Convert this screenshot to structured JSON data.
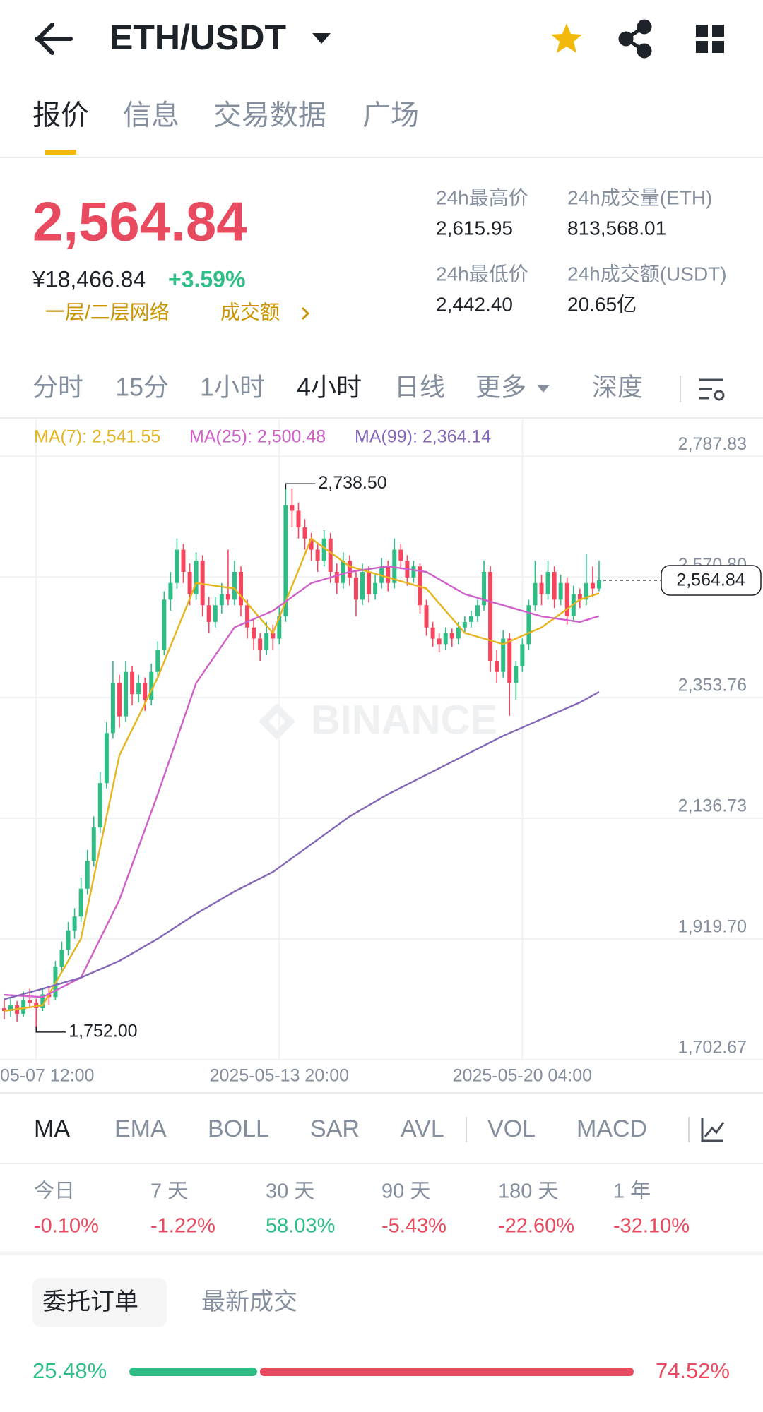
{
  "header": {
    "pair": "ETH/USDT"
  },
  "tabs": [
    "报价",
    "信息",
    "交易数据",
    "广场"
  ],
  "price": {
    "last": "2,564.84",
    "cny": "¥18,466.84",
    "change": "+3.59%",
    "links": [
      "一层/二层网络",
      "成交额"
    ]
  },
  "stats": [
    {
      "label": "24h最高价",
      "value": "2,615.95"
    },
    {
      "label": "24h成交量(ETH)",
      "value": "813,568.01"
    },
    {
      "label": "24h最低价",
      "value": "2,442.40"
    },
    {
      "label": "24h成交额(USDT)",
      "value": "20.65亿"
    }
  ],
  "intervals": [
    "分时",
    "15分",
    "1小时",
    "4小时",
    "日线",
    "更多",
    "深度"
  ],
  "chart_data": {
    "type": "candlestick",
    "up_color": "#2ebd85",
    "down_color": "#f6465d",
    "grid": true,
    "watermark": "BINANCE",
    "ohlc": [
      [
        1795,
        1810,
        1775,
        1790
      ],
      [
        1790,
        1815,
        1780,
        1800
      ],
      [
        1800,
        1808,
        1770,
        1785
      ],
      [
        1785,
        1825,
        1780,
        1810
      ],
      [
        1810,
        1830,
        1795,
        1805
      ],
      [
        1805,
        1812,
        1752,
        1795
      ],
      [
        1795,
        1830,
        1790,
        1820
      ],
      [
        1820,
        1835,
        1800,
        1815
      ],
      [
        1815,
        1880,
        1810,
        1870
      ],
      [
        1870,
        1915,
        1860,
        1900
      ],
      [
        1900,
        1950,
        1890,
        1935
      ],
      [
        1935,
        1975,
        1920,
        1960
      ],
      [
        1960,
        2030,
        1950,
        2010
      ],
      [
        2010,
        2080,
        2000,
        2060
      ],
      [
        2060,
        2140,
        2050,
        2120
      ],
      [
        2120,
        2220,
        2110,
        2200
      ],
      [
        2200,
        2310,
        2190,
        2290
      ],
      [
        2290,
        2420,
        2280,
        2380
      ],
      [
        2380,
        2395,
        2300,
        2320
      ],
      [
        2320,
        2420,
        2310,
        2400
      ],
      [
        2400,
        2410,
        2340,
        2360
      ],
      [
        2360,
        2395,
        2345,
        2380
      ],
      [
        2380,
        2390,
        2330,
        2350
      ],
      [
        2350,
        2415,
        2340,
        2400
      ],
      [
        2400,
        2455,
        2390,
        2440
      ],
      [
        2440,
        2545,
        2430,
        2530
      ],
      [
        2530,
        2580,
        2510,
        2560
      ],
      [
        2560,
        2640,
        2550,
        2620
      ],
      [
        2620,
        2630,
        2560,
        2580
      ],
      [
        2580,
        2595,
        2520,
        2540
      ],
      [
        2540,
        2615,
        2530,
        2600
      ],
      [
        2600,
        2610,
        2500,
        2520
      ],
      [
        2520,
        2535,
        2470,
        2490
      ],
      [
        2490,
        2535,
        2480,
        2520
      ],
      [
        2520,
        2560,
        2505,
        2540
      ],
      [
        2540,
        2620,
        2520,
        2530
      ],
      [
        2530,
        2600,
        2520,
        2580
      ],
      [
        2580,
        2590,
        2500,
        2520
      ],
      [
        2520,
        2530,
        2460,
        2480
      ],
      [
        2480,
        2495,
        2440,
        2460
      ],
      [
        2460,
        2470,
        2420,
        2440
      ],
      [
        2440,
        2490,
        2430,
        2470
      ],
      [
        2470,
        2485,
        2440,
        2460
      ],
      [
        2460,
        2520,
        2450,
        2500
      ],
      [
        2500,
        2738.5,
        2490,
        2700
      ],
      [
        2700,
        2730,
        2660,
        2690
      ],
      [
        2690,
        2705,
        2640,
        2660
      ],
      [
        2660,
        2675,
        2620,
        2640
      ],
      [
        2640,
        2650,
        2600,
        2620
      ],
      [
        2620,
        2630,
        2580,
        2600
      ],
      [
        2600,
        2655,
        2590,
        2640
      ],
      [
        2640,
        2650,
        2560,
        2580
      ],
      [
        2580,
        2595,
        2540,
        2560
      ],
      [
        2560,
        2615,
        2550,
        2600
      ],
      [
        2600,
        2610,
        2555,
        2570
      ],
      [
        2570,
        2580,
        2500,
        2530
      ],
      [
        2530,
        2595,
        2520,
        2580
      ],
      [
        2580,
        2590,
        2525,
        2540
      ],
      [
        2540,
        2575,
        2530,
        2560
      ],
      [
        2560,
        2605,
        2550,
        2590
      ],
      [
        2590,
        2600,
        2545,
        2560
      ],
      [
        2560,
        2640,
        2550,
        2620
      ],
      [
        2620,
        2630,
        2585,
        2600
      ],
      [
        2600,
        2610,
        2555,
        2570
      ],
      [
        2570,
        2600,
        2560,
        2590
      ],
      [
        2590,
        2595,
        2505,
        2520
      ],
      [
        2520,
        2530,
        2465,
        2480
      ],
      [
        2480,
        2490,
        2445,
        2460
      ],
      [
        2460,
        2470,
        2435,
        2450
      ],
      [
        2450,
        2480,
        2440,
        2470
      ],
      [
        2470,
        2478,
        2445,
        2460
      ],
      [
        2460,
        2490,
        2450,
        2480
      ],
      [
        2480,
        2500,
        2470,
        2490
      ],
      [
        2490,
        2510,
        2480,
        2500
      ],
      [
        2500,
        2530,
        2490,
        2520
      ],
      [
        2520,
        2600,
        2510,
        2580
      ],
      [
        2580,
        2590,
        2400,
        2420
      ],
      [
        2420,
        2440,
        2380,
        2400
      ],
      [
        2400,
        2475,
        2390,
        2460
      ],
      [
        2460,
        2470,
        2321,
        2380
      ],
      [
        2380,
        2420,
        2350,
        2410
      ],
      [
        2410,
        2460,
        2400,
        2450
      ],
      [
        2450,
        2530,
        2440,
        2520
      ],
      [
        2520,
        2600,
        2510,
        2560
      ],
      [
        2560,
        2575,
        2520,
        2540
      ],
      [
        2540,
        2600,
        2530,
        2580
      ],
      [
        2580,
        2590,
        2515,
        2530
      ],
      [
        2530,
        2575,
        2520,
        2560
      ],
      [
        2560,
        2570,
        2485,
        2500
      ],
      [
        2500,
        2555,
        2490,
        2540
      ],
      [
        2540,
        2550,
        2515,
        2530
      ],
      [
        2530,
        2613,
        2520,
        2560
      ],
      [
        2560,
        2590,
        2535,
        2550
      ],
      [
        2550,
        2600,
        2545,
        2564.84
      ]
    ],
    "series": [
      {
        "name": "MA(7): 2,541.55",
        "color": "#e5b41e",
        "x": [
          0,
          6,
          12,
          18,
          24,
          30,
          36,
          42,
          48,
          54,
          60,
          66,
          72,
          78,
          84,
          90,
          93
        ],
        "values": [
          1790,
          1800,
          1920,
          2250,
          2390,
          2560,
          2550,
          2470,
          2640,
          2590,
          2570,
          2550,
          2470,
          2450,
          2480,
          2530,
          2541.55
        ]
      },
      {
        "name": "MA(25): 2,500.48",
        "color": "#cf5fc9",
        "x": [
          0,
          6,
          12,
          18,
          24,
          30,
          36,
          42,
          48,
          54,
          60,
          66,
          72,
          78,
          84,
          90,
          93
        ],
        "values": [
          1819,
          1815,
          1850,
          1990,
          2180,
          2380,
          2480,
          2510,
          2560,
          2580,
          2590,
          2580,
          2540,
          2520,
          2500,
          2490,
          2500.48
        ]
      },
      {
        "name": "MA(99): 2,364.14",
        "color": "#8468b8",
        "x": [
          0,
          6,
          12,
          18,
          24,
          30,
          36,
          42,
          48,
          54,
          60,
          66,
          72,
          78,
          84,
          90,
          93
        ],
        "values": [
          1811,
          1830,
          1850,
          1880,
          1920,
          1965,
          2005,
          2040,
          2090,
          2140,
          2180,
          2215,
          2250,
          2285,
          2315,
          2345,
          2364.14
        ]
      }
    ],
    "xlim": [
      0,
      93
    ],
    "xticks": [
      {
        "value": 5,
        "label": "05-07 12:00"
      },
      {
        "value": 43,
        "label": "2025-05-13 20:00"
      },
      {
        "value": 81,
        "label": "2025-05-20 04:00"
      }
    ],
    "ylim": [
      1702.67,
      2787.83
    ],
    "yticks": [
      {
        "value": 1702.67,
        "label": "1,702.67"
      },
      {
        "value": 1919.7,
        "label": "1,919.70"
      },
      {
        "value": 2136.73,
        "label": "2,136.73"
      },
      {
        "value": 2353.76,
        "label": "2,353.76"
      },
      {
        "value": 2570.8,
        "label": "2,570.80"
      },
      {
        "value": 2787.83,
        "label": "2,787.83"
      }
    ],
    "annotations": [
      {
        "text": "2,738.50",
        "x": 44,
        "y": 2738.5
      },
      {
        "text": "1,752.00",
        "x": 5,
        "y": 1752
      }
    ],
    "current_price": {
      "text": "2,564.84",
      "value": 2564.84
    }
  },
  "indicators": [
    "MA",
    "EMA",
    "BOLL",
    "SAR",
    "AVL",
    "VOL",
    "MACD"
  ],
  "performance": [
    {
      "label": "今日",
      "value": "-0.10%",
      "color": "#e84a5f"
    },
    {
      "label": "7 天",
      "value": "-1.22%",
      "color": "#e84a5f"
    },
    {
      "label": "30 天",
      "value": "58.03%",
      "color": "#2ebd85"
    },
    {
      "label": "90 天",
      "value": "-5.43%",
      "color": "#e84a5f"
    },
    {
      "label": "180 天",
      "value": "-22.60%",
      "color": "#e84a5f"
    },
    {
      "label": "1 年",
      "value": "-32.10%",
      "color": "#e84a5f"
    }
  ],
  "order_tabs": [
    "委托订单",
    "最新成交"
  ],
  "order_ratio": {
    "values": [
      25.48,
      74.52
    ],
    "value_labels": [
      "25.48%",
      "74.52%"
    ],
    "colors": [
      "#2ebd85",
      "#e84a5f"
    ]
  }
}
